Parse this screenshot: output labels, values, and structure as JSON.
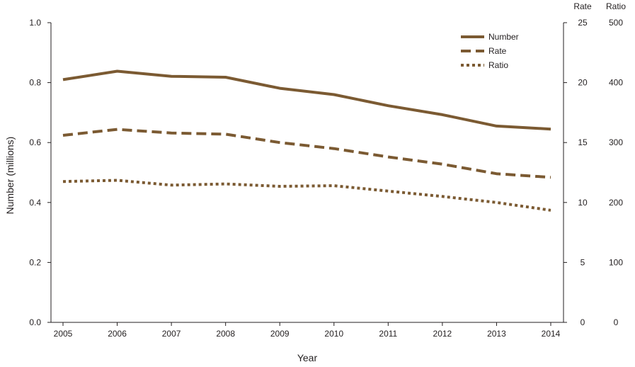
{
  "chart_data": {
    "type": "line",
    "x": [
      2005,
      2006,
      2007,
      2008,
      2009,
      2010,
      2011,
      2012,
      2013,
      2014
    ],
    "xlabel": "Year",
    "ylabel": "Number (millions)",
    "ylim": [
      0,
      1.0
    ],
    "yticks": [
      "0.0",
      "0.2",
      "0.4",
      "0.6",
      "0.8",
      "1.0"
    ],
    "y2_label": "Rate",
    "y2lim": [
      0,
      25
    ],
    "y2ticks": [
      "0",
      "5",
      "10",
      "15",
      "20",
      "25"
    ],
    "y3_label": "Ratio",
    "y3lim": [
      0,
      500
    ],
    "y3ticks": [
      "0",
      "100",
      "200",
      "300",
      "400",
      "500"
    ],
    "grid": false,
    "legend_position": "top-right",
    "line_color": "#7b5a32",
    "series": [
      {
        "name": "Number",
        "axis": "left",
        "style": "solid",
        "values": [
          0.81,
          0.838,
          0.821,
          0.818,
          0.781,
          0.76,
          0.723,
          0.693,
          0.655,
          0.645
        ]
      },
      {
        "name": "Rate",
        "axis": "rate",
        "style": "dashed",
        "values": [
          15.6,
          16.1,
          15.8,
          15.7,
          15.0,
          14.5,
          13.8,
          13.2,
          12.4,
          12.1
        ]
      },
      {
        "name": "Ratio",
        "axis": "ratio",
        "style": "dotted",
        "values": [
          235,
          237,
          229,
          231,
          227,
          228,
          219,
          210,
          200,
          187
        ]
      }
    ]
  }
}
